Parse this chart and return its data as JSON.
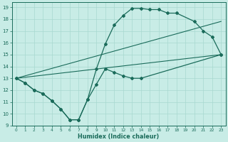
{
  "xlabel": "Humidex (Indice chaleur)",
  "xlim": [
    -0.5,
    23.5
  ],
  "ylim": [
    9,
    19.4
  ],
  "xticks": [
    0,
    1,
    2,
    3,
    4,
    5,
    6,
    7,
    8,
    9,
    10,
    11,
    12,
    13,
    14,
    15,
    16,
    17,
    18,
    19,
    20,
    21,
    22,
    23
  ],
  "yticks": [
    9,
    10,
    11,
    12,
    13,
    14,
    15,
    16,
    17,
    18,
    19
  ],
  "bg_color": "#c8ece6",
  "grid_color": "#a8d8d0",
  "line_color": "#1a6b5a",
  "line1_x": [
    0,
    1,
    2,
    3,
    4,
    5,
    6,
    7,
    8,
    9,
    10,
    11,
    12,
    13,
    14,
    23
  ],
  "line1_y": [
    13,
    12.6,
    12.0,
    11.7,
    11.1,
    10.4,
    9.5,
    9.5,
    11.2,
    12.5,
    13.8,
    13.5,
    13.2,
    13.0,
    13.0,
    15.0
  ],
  "line2_x": [
    0,
    1,
    2,
    3,
    4,
    5,
    6,
    7,
    8,
    9,
    10,
    11,
    12,
    13,
    14,
    15,
    16,
    17,
    18,
    20,
    21,
    22,
    23
  ],
  "line2_y": [
    13,
    12.6,
    12.0,
    11.7,
    11.1,
    10.4,
    9.5,
    9.5,
    11.2,
    13.8,
    15.9,
    17.5,
    18.3,
    18.9,
    18.9,
    18.8,
    18.8,
    18.5,
    18.5,
    17.8,
    17.0,
    16.5,
    15.0
  ],
  "line3_x": [
    0,
    23
  ],
  "line3_y": [
    13.0,
    15.0
  ],
  "line4_x": [
    0,
    23
  ],
  "line4_y": [
    13.0,
    17.8
  ]
}
